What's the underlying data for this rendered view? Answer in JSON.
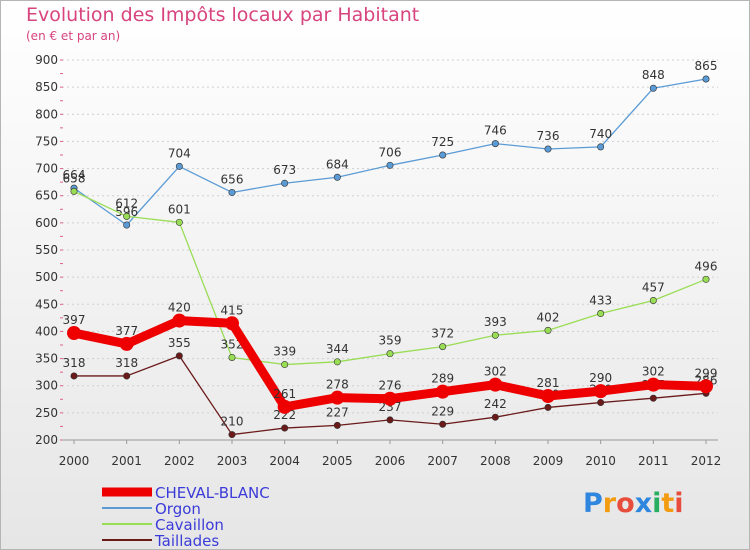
{
  "chart_data": {
    "type": "line",
    "title": "Evolution des Impôts locaux par Habitant",
    "subtitle": "(en € et par an)",
    "x": [
      "2000",
      "2001",
      "2002",
      "2003",
      "2004",
      "2005",
      "2006",
      "2007",
      "2008",
      "2009",
      "2010",
      "2011",
      "2012"
    ],
    "ylim": [
      200,
      900
    ],
    "yticks": [
      200,
      250,
      300,
      350,
      400,
      450,
      500,
      550,
      600,
      650,
      700,
      750,
      800,
      850,
      900
    ],
    "grid": "horizontal dashed",
    "series": [
      {
        "name": "CHEVAL-BLANC",
        "color": "#ee0000",
        "values": [
          397,
          377,
          420,
          415,
          261,
          278,
          276,
          289,
          302,
          281,
          290,
          302,
          299
        ]
      },
      {
        "name": "Orgon",
        "color": "#5b9bd5",
        "values": [
          664,
          596,
          704,
          656,
          673,
          684,
          706,
          725,
          746,
          736,
          740,
          848,
          865
        ]
      },
      {
        "name": "Cavaillon",
        "color": "#99dd55",
        "values": [
          658,
          612,
          601,
          352,
          339,
          344,
          359,
          372,
          393,
          402,
          433,
          457,
          496
        ]
      },
      {
        "name": "Taillades",
        "color": "#6b1a1a",
        "values": [
          318,
          318,
          355,
          210,
          222,
          227,
          237,
          229,
          242,
          260,
          269,
          277,
          286
        ]
      }
    ]
  },
  "logo": {
    "text": "Proxiti",
    "letters": [
      "P",
      "r",
      "o",
      "x",
      "i",
      "t",
      "i"
    ],
    "colors": [
      "#2e86de",
      "#f39c12",
      "#e74c3c",
      "#2e86de",
      "#27ae60",
      "#f39c12",
      "#e74c3c"
    ]
  }
}
